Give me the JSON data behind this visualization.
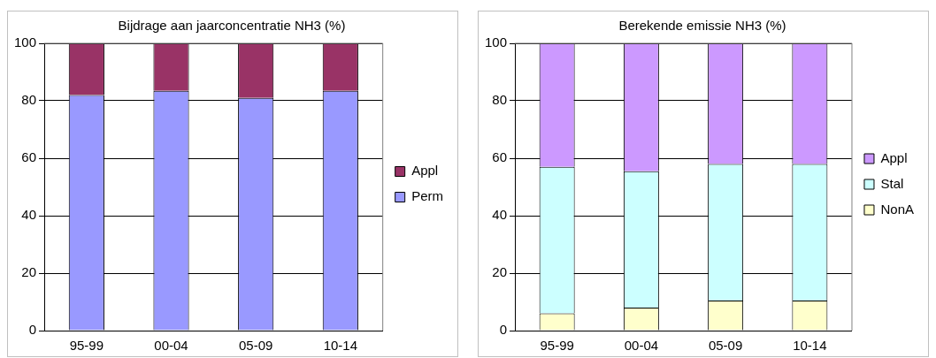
{
  "chart_data": [
    {
      "type": "bar",
      "title": "Bijdrage aan jaarconcentratie NH3 (%)",
      "categories": [
        "95-99",
        "00-04",
        "05-09",
        "10-14"
      ],
      "stacked": true,
      "ylim": [
        0,
        100
      ],
      "yticks": [
        0,
        20,
        40,
        60,
        80,
        100
      ],
      "grid": "y",
      "legend": "right",
      "series": [
        {
          "name": "Perm",
          "color": "#9999ff",
          "values": [
            82,
            83.5,
            81,
            83.5
          ]
        },
        {
          "name": "Appl",
          "color": "#993366",
          "values": [
            18,
            16.5,
            19,
            16.5
          ]
        }
      ]
    },
    {
      "type": "bar",
      "title": "Berekende emissie NH3 (%)",
      "categories": [
        "95-99",
        "00-04",
        "05-09",
        "10-14"
      ],
      "stacked": true,
      "ylim": [
        0,
        100
      ],
      "yticks": [
        0,
        20,
        40,
        60,
        80,
        100
      ],
      "grid": "y",
      "legend": "right",
      "series": [
        {
          "name": "NonA",
          "color": "#ffffcc",
          "values": [
            6,
            8,
            10.5,
            10.5
          ]
        },
        {
          "name": "Stal",
          "color": "#ccffff",
          "values": [
            51,
            47.5,
            47.5,
            47.5
          ]
        },
        {
          "name": "Appl",
          "color": "#cc99ff",
          "values": [
            43,
            44.5,
            42,
            42
          ]
        }
      ]
    }
  ]
}
